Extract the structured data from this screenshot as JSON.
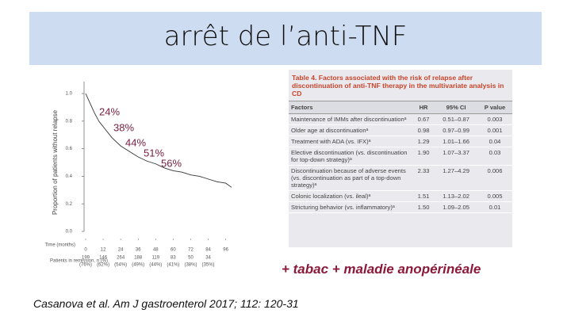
{
  "title": "arrêt de l’anti-TNF",
  "chart_data": {
    "type": "line",
    "ylabel": "Proportion of patients without relapse",
    "xlabel": "Time (months)",
    "x": [
      0,
      3,
      6,
      9,
      12,
      18,
      24,
      30,
      36,
      42,
      48,
      54,
      60,
      66,
      72,
      78,
      84,
      90,
      96,
      100
    ],
    "values": [
      1.0,
      0.93,
      0.86,
      0.8,
      0.76,
      0.68,
      0.62,
      0.58,
      0.54,
      0.51,
      0.49,
      0.46,
      0.44,
      0.43,
      0.41,
      0.4,
      0.38,
      0.36,
      0.35,
      0.32
    ],
    "color": "#333333",
    "xlim": [
      0,
      100
    ],
    "ylim": [
      0,
      1
    ],
    "xticks": [
      0,
      12,
      24,
      36,
      48,
      60,
      72,
      84,
      96
    ],
    "yticks": [
      {
        "value": 0,
        "label": "0.0"
      },
      {
        "value": 0.2,
        "label": "0.2"
      },
      {
        "value": 0.4,
        "label": "0.4"
      },
      {
        "value": 0.6,
        "label": "0.6"
      },
      {
        "value": 0.8,
        "label": "0.8"
      },
      {
        "value": 1,
        "label": "1.0"
      }
    ],
    "annotations": [
      "24%",
      "38%",
      "44%",
      "51%",
      "56%"
    ],
    "risk_label": "Patients in remission, n (%)",
    "risk_counts": [
      "199",
      "146",
      "264",
      "188",
      "119",
      "83",
      "50",
      "34"
    ],
    "risk_percents": [
      "(76%)",
      "(62%)",
      "(54%)",
      "(49%)",
      "(44%)",
      "(41%)",
      "(38%)",
      "(35%)"
    ]
  },
  "table": {
    "title": "Table 4. Factors associated with the risk of relapse after discontinuation of anti-TNF therapy in the multivariate analysis in CD",
    "header": [
      "Factors",
      "HR",
      "95% CI",
      "P value"
    ],
    "rows": [
      [
        "Maintenance of IMMs after discontinuationᵃ",
        "0.67",
        "0.51–0.87",
        "0.003"
      ],
      [
        "Older age at discontinuationᵃ",
        "0.98",
        "0.97–0.99",
        "0.001"
      ],
      [
        "Treatment with ADA (vs. IFX)ᵃ",
        "1.29",
        "1.01–1.66",
        "0.04"
      ],
      [
        "Elective discontinuation (vs. discontinuation for top-down strategy)ᵃ",
        "1.90",
        "1.07–3.37",
        "0.03"
      ],
      [
        "Discontinuation because of adverse events (vs. discontinuation as part of a top-down strategy)ᵃ",
        "2.33",
        "1.27–4.29",
        "0.006"
      ],
      [
        "Colonic localization (vs. ileal)ᵃ",
        "1.51",
        "1.13–2.02",
        "0.005"
      ],
      [
        "Stricturing behavior (vs. inflammatory)ᵃ",
        "1.50",
        "1.09–2.05",
        "0.01"
      ]
    ]
  },
  "note": "+ tabac + maladie anopérinéale",
  "citation": "Casanova et al. Am J gastroenterol 2017; 112: 120-31"
}
